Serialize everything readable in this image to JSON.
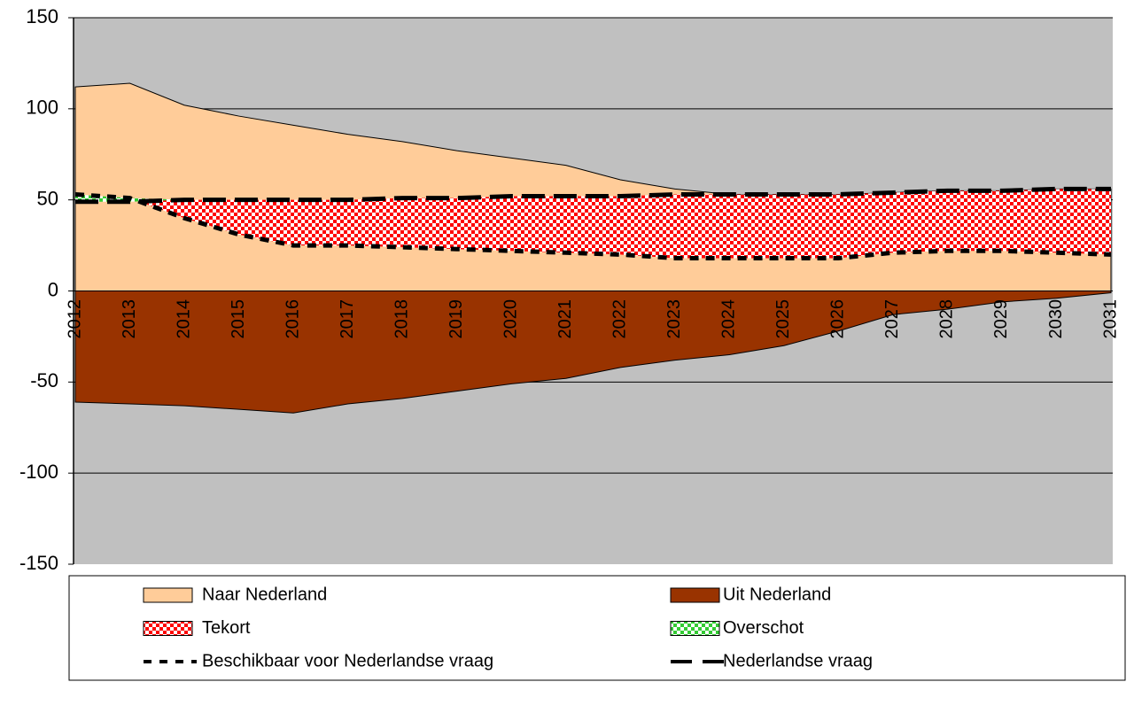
{
  "chart_data": {
    "type": "area",
    "categories": [
      "2012",
      "2013",
      "2014",
      "2015",
      "2016",
      "2017",
      "2018",
      "2019",
      "2020",
      "2021",
      "2022",
      "2023",
      "2024",
      "2025",
      "2026",
      "2027",
      "2028",
      "2029",
      "2030",
      "2031"
    ],
    "ylim": [
      -150,
      150
    ],
    "yticks": [
      -150,
      -100,
      -50,
      0,
      50,
      100,
      150
    ],
    "grid": true,
    "background": "#c0c0c0",
    "legend": "bottom",
    "series": [
      {
        "name": "Naar Nederland",
        "kind": "area",
        "color": "#ffcc99",
        "values": [
          112,
          114,
          102,
          96,
          91,
          86,
          82,
          77,
          73,
          69,
          61,
          56,
          53,
          53,
          53,
          54,
          55,
          55,
          56,
          56
        ]
      },
      {
        "name": "Uit Nederland",
        "kind": "area",
        "color": "#993300",
        "values": [
          -61,
          -62,
          -63,
          -65,
          -67,
          -62,
          -59,
          -55,
          -51,
          -48,
          -42,
          -38,
          -35,
          -30,
          -22,
          -13,
          -10,
          -6,
          -4,
          -1
        ]
      },
      {
        "name": "Tekort",
        "kind": "pattern",
        "color": "#ff0000",
        "values": [
          0,
          0,
          10,
          19,
          25,
          25,
          27,
          28,
          30,
          31,
          32,
          35,
          35,
          35,
          35,
          33,
          33,
          33,
          35,
          36
        ]
      },
      {
        "name": "Overschot",
        "kind": "pattern",
        "color": "#33cc33",
        "values": [
          4,
          2,
          0,
          0,
          0,
          0,
          0,
          0,
          0,
          0,
          0,
          0,
          0,
          0,
          0,
          0,
          0,
          0,
          0,
          0
        ]
      },
      {
        "name": "Beschikbaar voor Nederlandse vraag",
        "kind": "line",
        "dash": "short",
        "color": "#000000",
        "values": [
          53,
          51,
          40,
          31,
          25,
          25,
          24,
          23,
          22,
          21,
          20,
          18,
          18,
          18,
          18,
          21,
          22,
          22,
          21,
          20
        ]
      },
      {
        "name": "Nederlandse vraag",
        "kind": "line",
        "dash": "long",
        "color": "#000000",
        "values": [
          49,
          49,
          50,
          50,
          50,
          50,
          51,
          51,
          52,
          52,
          52,
          53,
          53,
          53,
          53,
          54,
          55,
          55,
          56,
          56
        ]
      }
    ]
  }
}
